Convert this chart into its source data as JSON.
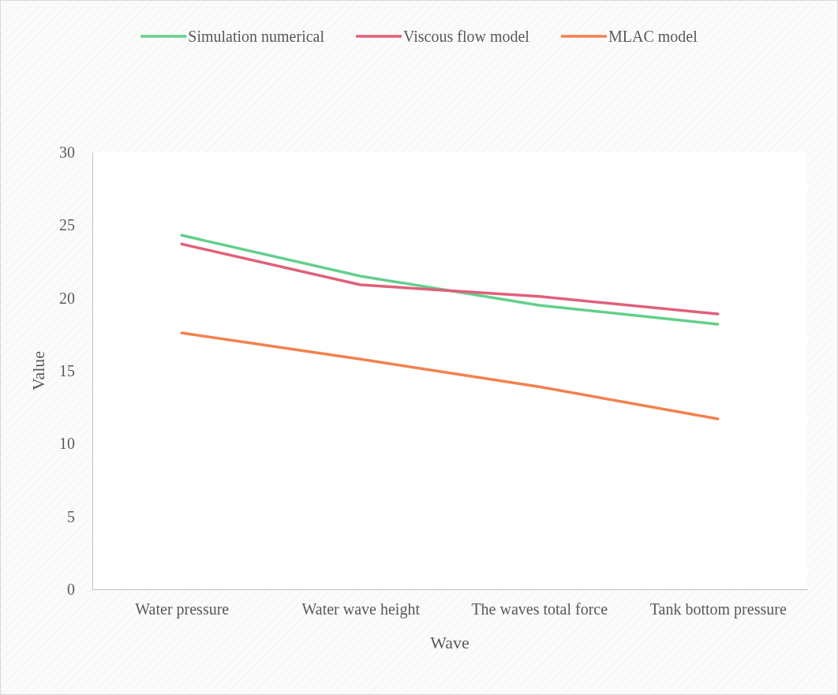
{
  "chart_data": {
    "type": "line",
    "xlabel": "Wave",
    "ylabel": "Value",
    "categories": [
      "Water pressure",
      "Water wave height",
      "The waves total force",
      "Tank bottom pressure"
    ],
    "series": [
      {
        "name": "Simulation numerical",
        "color": "#63cf8c",
        "values": [
          24.3,
          21.5,
          19.5,
          18.2
        ]
      },
      {
        "name": "Viscous flow model",
        "color": "#e0607a",
        "values": [
          23.7,
          20.9,
          20.1,
          18.9
        ]
      },
      {
        "name": "MLAC model",
        "color": "#f4814f",
        "values": [
          17.6,
          15.8,
          13.9,
          11.7
        ]
      }
    ],
    "ylim": [
      0,
      30
    ],
    "yticks": [
      0,
      5,
      10,
      15,
      20,
      25,
      30
    ],
    "grid": false,
    "legend": "top",
    "marker": "none",
    "line_style": "solid"
  }
}
